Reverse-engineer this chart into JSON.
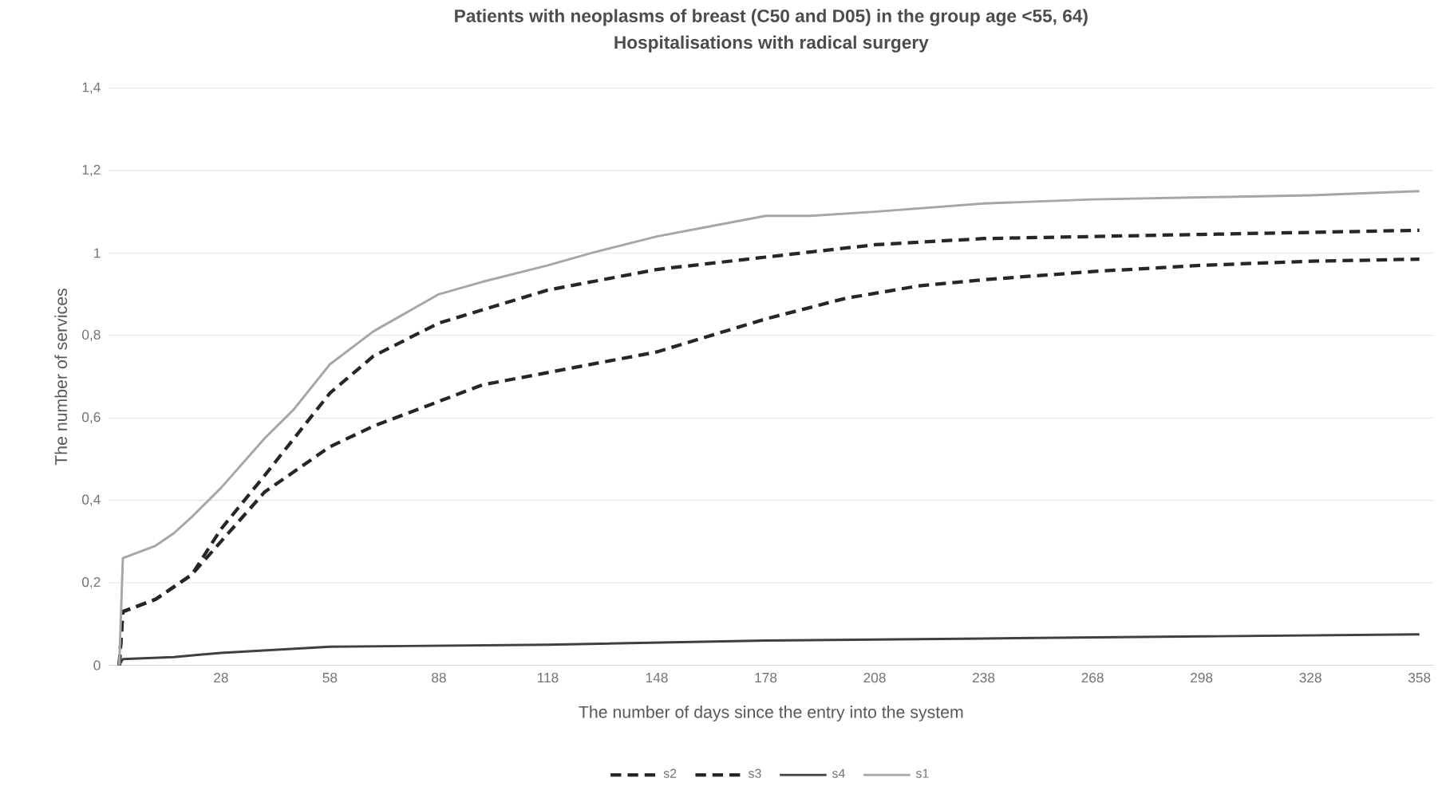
{
  "chart_data": {
    "type": "line",
    "title": "Patients with neoplasms of breast (C50 and D05) in the group age <55, 64)",
    "subtitle": "Hospitalisations with radical surgery",
    "xlabel": "The number of days since the entry into the system",
    "ylabel": "The number of services",
    "xlim": [
      -3,
      362
    ],
    "xticks": [
      28,
      58,
      88,
      118,
      148,
      178,
      208,
      238,
      268,
      298,
      328,
      358
    ],
    "ylim": [
      0,
      1.4
    ],
    "yticks": [
      0,
      {
        "value": 0.2,
        "label": "0,2"
      },
      {
        "value": 0.4,
        "label": "0,4"
      },
      {
        "value": 0.6,
        "label": "0,6"
      },
      {
        "value": 0.8,
        "label": "0,8"
      },
      1,
      {
        "value": 1.2,
        "label": "1,2"
      },
      {
        "value": 1.4,
        "label": "1,4"
      }
    ],
    "grid": "y",
    "legend": "bottom",
    "marker": "none",
    "series": [
      {
        "name": "s2",
        "color": "#262626",
        "line_style": "dashed",
        "x": [
          0,
          1,
          10,
          20,
          28,
          40,
          58,
          70,
          88,
          118,
          148,
          178,
          208,
          238,
          268,
          298,
          328,
          358
        ],
        "values": [
          0,
          0.13,
          0.16,
          0.22,
          0.33,
          0.46,
          0.66,
          0.75,
          0.83,
          0.91,
          0.96,
          0.99,
          1.02,
          1.035,
          1.04,
          1.045,
          1.05,
          1.055
        ]
      },
      {
        "name": "s3",
        "color": "#262626",
        "line_style": "dashed",
        "x": [
          0,
          1,
          10,
          20,
          28,
          40,
          58,
          70,
          88,
          100,
          118,
          148,
          178,
          200,
          220,
          238,
          268,
          298,
          328,
          358
        ],
        "values": [
          0,
          0.13,
          0.16,
          0.22,
          0.3,
          0.42,
          0.53,
          0.58,
          0.64,
          0.68,
          0.71,
          0.76,
          0.84,
          0.89,
          0.92,
          0.935,
          0.955,
          0.97,
          0.98,
          0.985
        ]
      },
      {
        "name": "s4",
        "color": "#404040",
        "line_style": "solid",
        "x": [
          0,
          1,
          15,
          28,
          58,
          118,
          178,
          238,
          298,
          358
        ],
        "values": [
          0,
          0.015,
          0.02,
          0.03,
          0.045,
          0.05,
          0.06,
          0.065,
          0.07,
          0.075
        ]
      },
      {
        "name": "s1",
        "color": "#a6a6a6",
        "line_style": "solid",
        "x": [
          0,
          1,
          10,
          15,
          20,
          28,
          40,
          48,
          58,
          70,
          88,
          100,
          118,
          130,
          148,
          160,
          178,
          190,
          208,
          238,
          268,
          298,
          328,
          358
        ],
        "values": [
          0,
          0.26,
          0.29,
          0.32,
          0.36,
          0.43,
          0.55,
          0.62,
          0.73,
          0.81,
          0.9,
          0.93,
          0.97,
          1.0,
          1.04,
          1.06,
          1.09,
          1.09,
          1.1,
          1.12,
          1.13,
          1.135,
          1.14,
          1.15
        ]
      }
    ]
  }
}
